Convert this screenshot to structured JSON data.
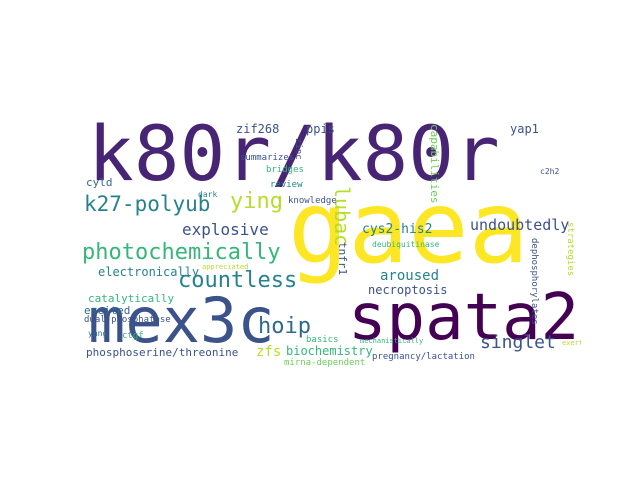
{
  "colors": {
    "purple": "#482475",
    "darkpurple": "#440154",
    "indigo": "#3b528b",
    "blue": "#31688e",
    "teal": "#26828e",
    "green": "#35b779",
    "lime": "#6ece58",
    "yellowgreen": "#b5de2b",
    "yellow": "#fde725"
  },
  "words": [
    {
      "text": "k80r/k80r",
      "color": "purple"
    },
    {
      "text": "gaea",
      "color": "yellow"
    },
    {
      "text": "mex3c",
      "color": "indigo"
    },
    {
      "text": "spata2",
      "color": "darkpurple"
    },
    {
      "text": "photochemically",
      "color": "green"
    },
    {
      "text": "countless",
      "color": "teal"
    },
    {
      "text": "k27-polyub",
      "color": "teal"
    },
    {
      "text": "ying",
      "color": "yellowgreen"
    },
    {
      "text": "lubac",
      "color": "yellowgreen"
    },
    {
      "text": "hoip",
      "color": "blue"
    },
    {
      "text": "singlet",
      "color": "indigo"
    },
    {
      "text": "explosive",
      "color": "indigo"
    },
    {
      "text": "undoubtedly",
      "color": "indigo"
    },
    {
      "text": "cys2-his2",
      "color": "teal"
    },
    {
      "text": "zif268",
      "color": "indigo"
    },
    {
      "text": "ppis",
      "color": "indigo"
    },
    {
      "text": "cyld",
      "color": "blue"
    },
    {
      "text": "yap1",
      "color": "indigo"
    },
    {
      "text": "electronically",
      "color": "teal"
    },
    {
      "text": "catalytically",
      "color": "green"
    },
    {
      "text": "excited",
      "color": "blue"
    },
    {
      "text": "dual-phosphatase",
      "color": "indigo"
    },
    {
      "text": "phosphoserine/threonine",
      "color": "indigo"
    },
    {
      "text": "zfs",
      "color": "yellowgreen"
    },
    {
      "text": "biochemistry",
      "color": "green"
    },
    {
      "text": "aroused",
      "color": "teal"
    },
    {
      "text": "necroptosis",
      "color": "indigo"
    },
    {
      "text": "tnfr1",
      "color": "indigo"
    },
    {
      "text": "summarizes",
      "color": "indigo"
    },
    {
      "text": "bridges",
      "color": "green"
    },
    {
      "text": "review",
      "color": "teal"
    },
    {
      "text": "knowledge",
      "color": "indigo"
    },
    {
      "text": "basics",
      "color": "green"
    },
    {
      "text": "pregnancy/lactation",
      "color": "indigo"
    },
    {
      "text": "mirna-dependent",
      "color": "lime"
    },
    {
      "text": "dephosphorylates",
      "color": "indigo"
    },
    {
      "text": "capabilities",
      "color": "lime"
    },
    {
      "text": "deubiquitinase",
      "color": "green"
    },
    {
      "text": "strategies",
      "color": "yellowgreen"
    },
    {
      "text": "yang",
      "color": "blue"
    },
    {
      "text": "c2h2",
      "color": "indigo"
    },
    {
      "text": "ctgf",
      "color": "green"
    },
    {
      "text": "dark",
      "color": "teal"
    },
    {
      "text": "zinc",
      "color": "indigo"
    },
    {
      "text": "appreciated",
      "color": "yellowgreen"
    },
    {
      "text": "mechanistically",
      "color": "green"
    },
    {
      "text": "exerting",
      "color": "yellowgreen"
    }
  ]
}
